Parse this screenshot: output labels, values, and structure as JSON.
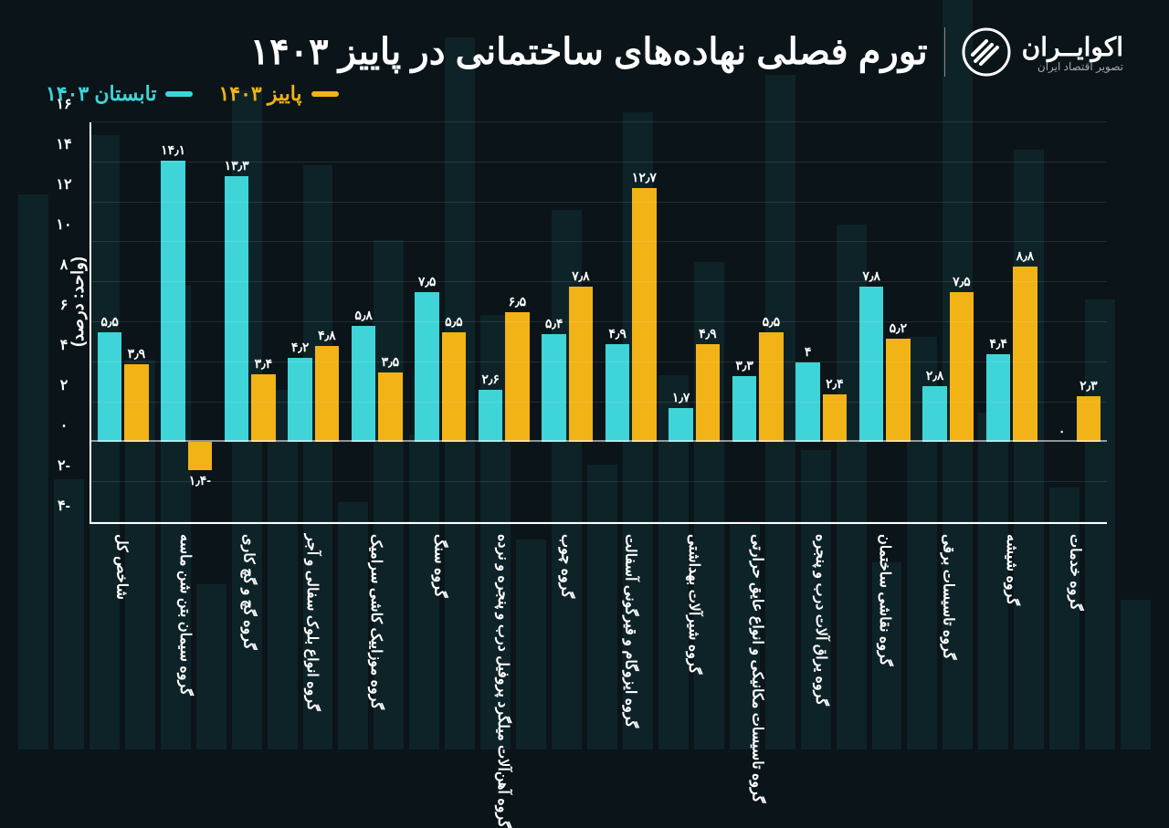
{
  "brand": {
    "name": "اکوایــران",
    "sub": "تصویر اقتصاد ایران"
  },
  "title": "تورم فصلی نهاده‌های ساختمانی در پاییز ۱۴۰۳",
  "legend": {
    "series_a": {
      "label": "پاییز ۱۴۰۳",
      "color": "#f2b316"
    },
    "series_b": {
      "label": "تابستان ۱۴۰۳",
      "color": "#3fd5d8"
    }
  },
  "chart": {
    "type": "bar",
    "y_min": -4,
    "y_max": 16,
    "y_ticks": [
      -4,
      -2,
      0,
      2,
      4,
      6,
      8,
      10,
      12,
      14,
      16
    ],
    "y_tick_labels": [
      "۴-",
      "۲-",
      "۰",
      "۲",
      "۴",
      "۶",
      "۸",
      "۱۰",
      "۱۲",
      "۱۴",
      "۱۶"
    ],
    "axis_label": "(واحد: درصد)",
    "colors": {
      "a": "#f2b316",
      "b": "#3fd5d8",
      "bg": "#0a1419",
      "text": "#ffffff"
    },
    "categories": [
      {
        "label": "شاخص کل",
        "a": 3.9,
        "a_lbl": "۳٫۹",
        "b": 5.5,
        "b_lbl": "۵٫۵"
      },
      {
        "label": "گروه سیمان بتن شن ماسه",
        "a": -1.4,
        "a_lbl": "۱٫۴-",
        "b": 14.1,
        "b_lbl": "۱۴٫۱"
      },
      {
        "label": "گروه گچ و گچ کاری",
        "a": 3.4,
        "a_lbl": "۳٫۴",
        "b": 13.3,
        "b_lbl": "۱۳٫۳"
      },
      {
        "label": "گروه انواع بلوک سفالی و آجر",
        "a": 4.8,
        "a_lbl": "۴٫۸",
        "b": 4.2,
        "b_lbl": "۴٫۲"
      },
      {
        "label": "گروه موزاییک کاشی سرامیک",
        "a": 3.5,
        "a_lbl": "۳٫۵",
        "b": 5.8,
        "b_lbl": "۵٫۸"
      },
      {
        "label": "گروه سنگ",
        "a": 5.5,
        "a_lbl": "۵٫۵",
        "b": 7.5,
        "b_lbl": "۷٫۵"
      },
      {
        "label": "گروه آهن‌آلات میلگرد پروفیل درب و پنجره و نرده",
        "a": 6.5,
        "a_lbl": "۶٫۵",
        "b": 2.6,
        "b_lbl": "۲٫۶"
      },
      {
        "label": "گروه چوب",
        "a": 7.8,
        "a_lbl": "۷٫۸",
        "b": 5.4,
        "b_lbl": "۵٫۴"
      },
      {
        "label": "گروه ایزوگام و قیرگونی آسفالت",
        "a": 12.7,
        "a_lbl": "۱۲٫۷",
        "b": 4.9,
        "b_lbl": "۴٫۹"
      },
      {
        "label": "گروه شیرآلات بهداشتی",
        "a": 4.9,
        "a_lbl": "۴٫۹",
        "b": 1.7,
        "b_lbl": "۱٫۷"
      },
      {
        "label": "گروه تاسیسات مکانیکی و انواع عایق حرارتی",
        "a": 5.5,
        "a_lbl": "۵٫۵",
        "b": 3.3,
        "b_lbl": "۳٫۳"
      },
      {
        "label": "گروه یراق آلات درب و پنجره",
        "a": 2.4,
        "a_lbl": "۲٫۴",
        "b": 4.0,
        "b_lbl": "۴"
      },
      {
        "label": "گروه نقاشی ساختمان",
        "a": 5.2,
        "a_lbl": "۵٫۲",
        "b": 7.8,
        "b_lbl": "۷٫۸"
      },
      {
        "label": "گروه تاسیسات برقی",
        "a": 7.5,
        "a_lbl": "۷٫۵",
        "b": 2.8,
        "b_lbl": "۲٫۸"
      },
      {
        "label": "گروه شیشه",
        "a": 8.8,
        "a_lbl": "۸٫۸",
        "b": 4.4,
        "b_lbl": "۴٫۴"
      },
      {
        "label": "گروه خدمات",
        "a": 2.3,
        "a_lbl": "۲٫۳",
        "b": 0.0,
        "b_lbl": "۰"
      }
    ]
  }
}
